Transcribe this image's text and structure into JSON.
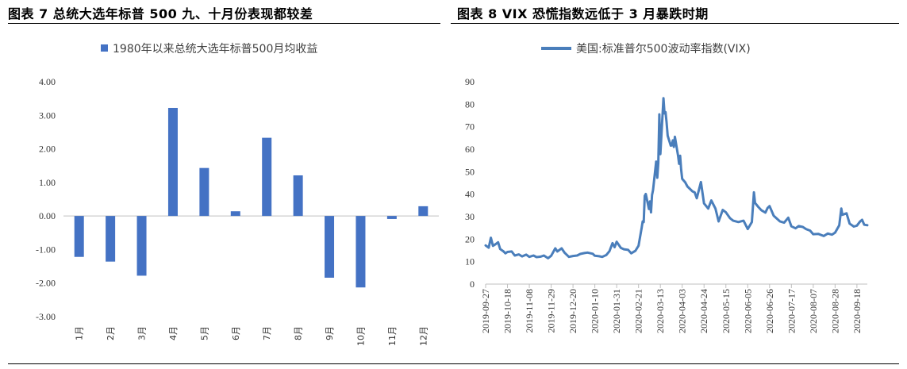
{
  "titles": {
    "left": "图表 7 总统大选年标普 500 九、十月份表现都较差",
    "right": "图表 8 VIX 恐慌指数远低于 3 月暴跌时期"
  },
  "colors": {
    "bar": "#4472C4",
    "line": "#4A7EBB",
    "axis": "#BFBFBF"
  },
  "chart_data": [
    {
      "type": "bar",
      "legend": "1980年以来总统大选年标普500月均收益",
      "categories": [
        "1月",
        "2月",
        "3月",
        "4月",
        "5月",
        "6月",
        "7月",
        "8月",
        "9月",
        "10月",
        "11月",
        "12月"
      ],
      "values": [
        -1.22,
        -1.36,
        -1.78,
        3.22,
        1.43,
        0.14,
        2.33,
        1.21,
        -1.84,
        -2.13,
        -0.09,
        0.29
      ],
      "ylim": [
        -3,
        4
      ],
      "yticks": [
        "4.00",
        "3.00",
        "2.00",
        "1.00",
        "0.00",
        "-1.00",
        "-2.00",
        "-3.00"
      ],
      "legend_position": "top"
    },
    {
      "type": "line",
      "legend": "美国:标准普尔500波动率指数(VIX)",
      "ylim": [
        0,
        90
      ],
      "yticks": [
        "90",
        "80",
        "70",
        "60",
        "50",
        "40",
        "30",
        "20",
        "10",
        "0"
      ],
      "xticks": [
        "2019-09-27",
        "2019-10-18",
        "2019-11-08",
        "2019-11-29",
        "2019-12-20",
        "2020-01-10",
        "2020-01-31",
        "2020-02-21",
        "2020-03-13",
        "2020-04-03",
        "2020-04-24",
        "2020-05-15",
        "2020-06-05",
        "2020-06-26",
        "2020-07-17",
        "2020-08-07",
        "2020-08-28",
        "2020-09-18"
      ],
      "series": [
        {
          "name": "美国:标准普尔500波动率指数(VIX)",
          "x": [
            "2019-09-27",
            "2019-09-30",
            "2019-10-02",
            "2019-10-04",
            "2019-10-07",
            "2019-10-09",
            "2019-10-11",
            "2019-10-14",
            "2019-10-16",
            "2019-10-18",
            "2019-10-22",
            "2019-10-25",
            "2019-10-29",
            "2019-11-01",
            "2019-11-05",
            "2019-11-08",
            "2019-11-12",
            "2019-11-15",
            "2019-11-19",
            "2019-11-22",
            "2019-11-26",
            "2019-11-29",
            "2019-12-03",
            "2019-12-05",
            "2019-12-09",
            "2019-12-12",
            "2019-12-16",
            "2019-12-20",
            "2019-12-24",
            "2019-12-27",
            "2019-12-31",
            "2020-01-03",
            "2020-01-08",
            "2020-01-10",
            "2020-01-14",
            "2020-01-17",
            "2020-01-21",
            "2020-01-24",
            "2020-01-27",
            "2020-01-29",
            "2020-01-31",
            "2020-02-04",
            "2020-02-07",
            "2020-02-11",
            "2020-02-14",
            "2020-02-18",
            "2020-02-21",
            "2020-02-24",
            "2020-02-25",
            "2020-02-26",
            "2020-02-27",
            "2020-02-28",
            "2020-03-02",
            "2020-03-03",
            "2020-03-04",
            "2020-03-05",
            "2020-03-06",
            "2020-03-09",
            "2020-03-10",
            "2020-03-11",
            "2020-03-12",
            "2020-03-13",
            "2020-03-16",
            "2020-03-17",
            "2020-03-18",
            "2020-03-19",
            "2020-03-20",
            "2020-03-23",
            "2020-03-24",
            "2020-03-25",
            "2020-03-26",
            "2020-03-27",
            "2020-03-30",
            "2020-03-31",
            "2020-04-01",
            "2020-04-02",
            "2020-04-03",
            "2020-04-06",
            "2020-04-08",
            "2020-04-13",
            "2020-04-15",
            "2020-04-17",
            "2020-04-21",
            "2020-04-24",
            "2020-04-28",
            "2020-05-01",
            "2020-05-05",
            "2020-05-08",
            "2020-05-12",
            "2020-05-15",
            "2020-05-19",
            "2020-05-22",
            "2020-05-27",
            "2020-06-01",
            "2020-06-05",
            "2020-06-09",
            "2020-06-11",
            "2020-06-12",
            "2020-06-15",
            "2020-06-18",
            "2020-06-22",
            "2020-06-24",
            "2020-06-26",
            "2020-06-30",
            "2020-07-06",
            "2020-07-10",
            "2020-07-14",
            "2020-07-17",
            "2020-07-21",
            "2020-07-24",
            "2020-07-28",
            "2020-07-31",
            "2020-08-04",
            "2020-08-07",
            "2020-08-12",
            "2020-08-17",
            "2020-08-21",
            "2020-08-25",
            "2020-08-28",
            "2020-09-01",
            "2020-09-03",
            "2020-09-04",
            "2020-09-08",
            "2020-09-11",
            "2020-09-15",
            "2020-09-18",
            "2020-09-21",
            "2020-09-23",
            "2020-09-25",
            "2020-09-28"
          ],
          "y": [
            17.2,
            16.2,
            20.6,
            17.0,
            17.9,
            18.6,
            15.6,
            14.6,
            13.7,
            14.3,
            14.5,
            12.7,
            13.2,
            12.3,
            13.1,
            12.1,
            12.7,
            12.0,
            12.2,
            12.7,
            11.5,
            12.6,
            15.9,
            14.5,
            15.9,
            13.9,
            12.1,
            12.5,
            12.7,
            13.4,
            13.8,
            14.0,
            13.5,
            12.6,
            12.4,
            12.1,
            12.9,
            14.6,
            18.2,
            16.4,
            18.8,
            16.1,
            15.5,
            15.2,
            13.7,
            14.8,
            17.1,
            25.0,
            27.9,
            27.6,
            39.2,
            40.1,
            33.4,
            36.8,
            31.9,
            39.6,
            41.9,
            54.5,
            47.3,
            53.9,
            75.5,
            57.8,
            82.7,
            75.9,
            76.5,
            72.0,
            66.0,
            61.6,
            61.7,
            63.9,
            61.0,
            65.5,
            57.1,
            53.5,
            57.1,
            50.9,
            46.8,
            45.2,
            43.4,
            41.2,
            40.8,
            38.2,
            45.4,
            35.9,
            33.6,
            37.2,
            33.6,
            27.9,
            33.0,
            31.9,
            29.3,
            28.2,
            27.6,
            28.2,
            24.5,
            27.6,
            40.8,
            36.1,
            34.4,
            32.9,
            31.8,
            33.8,
            34.7,
            30.4,
            27.9,
            27.3,
            29.5,
            25.7,
            24.8,
            25.8,
            25.4,
            24.5,
            23.8,
            22.2,
            22.3,
            21.4,
            22.5,
            22.0,
            22.9,
            26.1,
            33.6,
            30.8,
            31.5,
            26.9,
            25.6,
            26.0,
            27.8,
            28.6,
            26.4,
            26.2
          ]
        }
      ]
    }
  ]
}
